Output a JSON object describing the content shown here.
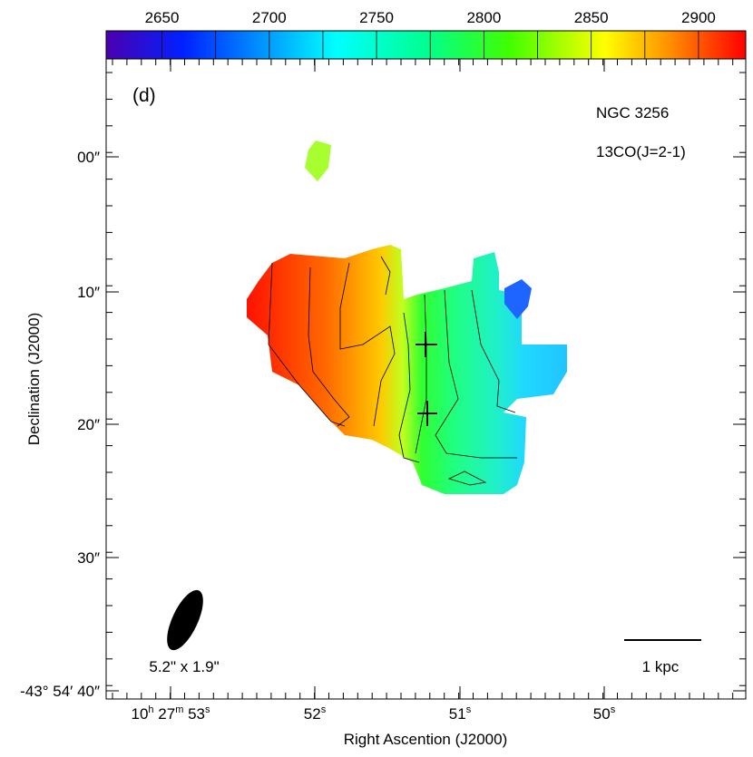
{
  "panel_label": "(d)",
  "object_name": "NGC 3256",
  "line_name": "13CO(J=2-1)",
  "colorbar": {
    "lim": [
      2624,
      2922
    ],
    "ticks": [
      2650,
      2700,
      2750,
      2800,
      2850,
      2900
    ]
  },
  "y_axis": {
    "label": "Declination (J2000)",
    "ticks": [
      "00″",
      "10″",
      "20″",
      "30″",
      "-43° 54′ 40″"
    ]
  },
  "x_axis": {
    "label": "Right Ascention (J2000)",
    "ticks": [
      [
        "10",
        "h",
        " 27",
        "m",
        " 53",
        "s"
      ],
      [
        "52",
        "s"
      ],
      [
        "51",
        "s"
      ],
      [
        "50",
        "s"
      ]
    ]
  },
  "beam_label": "5.2\" x 1.9\"",
  "scale_bar_label": "1 kpc"
}
